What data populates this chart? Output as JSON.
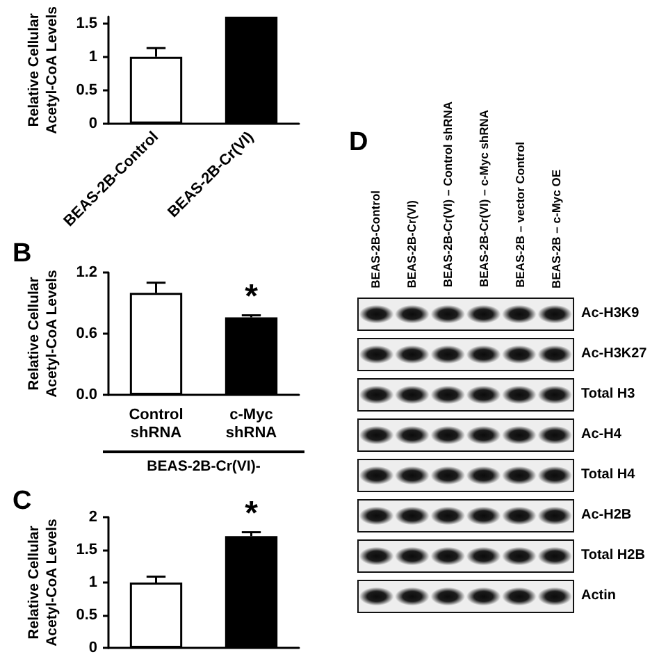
{
  "chart_data": [
    {
      "type": "bar",
      "ylabel": "Relative Cellular\nAcetyl-CoA Levels",
      "categories": [
        "BEAS-2B-Control",
        "BEAS-2B-Cr(VI)"
      ],
      "values": [
        1,
        1.6
      ],
      "colors": [
        "#ffffff",
        "#000000"
      ],
      "errors": [
        [
          1,
          1.13
        ],
        null
      ],
      "ylim": [
        0,
        1.6
      ],
      "yticks": [
        0,
        0.5,
        1,
        1.5
      ]
    },
    {
      "type": "bar",
      "title": "B",
      "ylabel": "Relative Cellular\nAcetyl-CoA Levels",
      "xlabel": "BEAS-2B-Cr(VI)-",
      "categories": [
        "Control\nshRNA",
        "c-Myc\nshRNA"
      ],
      "values": [
        1,
        0.76
      ],
      "colors": [
        "#ffffff",
        "#000000"
      ],
      "errors": [
        [
          1,
          1.1
        ],
        [
          0.76,
          0.78
        ]
      ],
      "value_labels": [
        null,
        "*"
      ],
      "ylim": [
        0,
        1.2
      ],
      "yticks": [
        {
          "value": 0,
          "label": "0.0"
        },
        0.6,
        1.2
      ]
    },
    {
      "type": "bar",
      "title": "C",
      "ylabel": "Relative Cellular\nAcetyl-CoA Levels",
      "categories": [
        null,
        null
      ],
      "values": [
        1,
        1.71
      ],
      "colors": [
        "#ffffff",
        "#000000"
      ],
      "errors": [
        [
          1,
          1.09
        ],
        [
          1.71,
          1.77
        ]
      ],
      "value_labels": [
        null,
        "*"
      ],
      "ylim": [
        0,
        2
      ],
      "yticks": [
        0,
        0.5,
        1,
        1.5,
        2
      ]
    },
    {
      "type": "other",
      "title": "D",
      "categories": [
        "BEAS-2B-Control",
        "BEAS-2B-Cr(VI)",
        "BEAS-2B-Cr(VI) – Control shRNA",
        "BEAS-2B-Cr(VI) – c-Myc shRNA",
        "BEAS-2B – vector Control",
        "BEAS-2B – c-Myc OE"
      ],
      "y_categories": [
        "Ac-H3K9",
        "Ac-H3K27",
        "Total H3",
        "Ac-H4",
        "Total H4",
        "Ac-H2B",
        "Total H2B",
        "Actin"
      ]
    }
  ]
}
